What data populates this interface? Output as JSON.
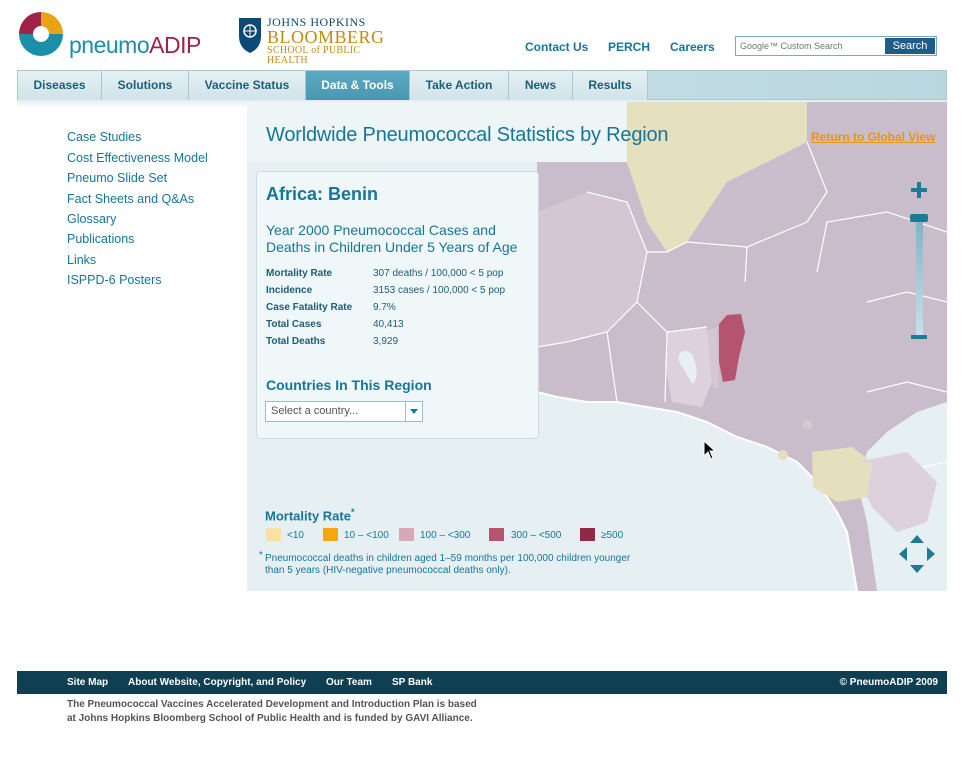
{
  "header": {
    "logo": {
      "prefix": "pneumo",
      "suffix": "ADIP"
    },
    "partner": {
      "line1": "JOHNS HOPKINS",
      "line2": "BLOOMBERG",
      "line3": "SCHOOL of PUBLIC HEALTH"
    },
    "links": [
      "Contact Us",
      "PERCH",
      "Careers"
    ],
    "search": {
      "placeholder": "Google™ Custom Search",
      "button": "Search"
    }
  },
  "nav": {
    "items": [
      "Diseases",
      "Solutions",
      "Vaccine Status",
      "Data & Tools",
      "Take Action",
      "News",
      "Results"
    ],
    "active": "Data & Tools"
  },
  "sidebar": {
    "items": [
      "Case Studies",
      "Cost Effectiveness Model",
      "Pneumo Slide Set",
      "Fact Sheets and Q&As",
      "Glossary",
      "Publications",
      "Links",
      "ISPPD-6 Posters"
    ]
  },
  "main": {
    "title": "Worldwide Pneumococcal Statistics by Region",
    "return_link": "Return to Global View",
    "panel": {
      "country": "Africa: Benin",
      "heading": "Year 2000 Pneumococcal Cases and Deaths in Children Under 5 Years of Age",
      "stats": [
        {
          "label": "Mortality Rate",
          "value": "307 deaths / 100,000 < 5 pop"
        },
        {
          "label": "Incidence",
          "value": "3153 cases / 100,000 < 5 pop"
        },
        {
          "label": "Case Fatality Rate",
          "value": "9.7%"
        },
        {
          "label": "Total Cases",
          "value": "40,413"
        },
        {
          "label": "Total Deaths",
          "value": "3,929"
        }
      ],
      "region_heading": "Countries In This Region",
      "select_value": "Select a country..."
    },
    "legend": {
      "title": "Mortality Rate",
      "title_mark": "*",
      "items": [
        {
          "label": "<10",
          "color": "#fbe0a6"
        },
        {
          "label": "10 – <100",
          "color": "#f5a70f"
        },
        {
          "label": "100 – <300",
          "color": "#d9a8b8"
        },
        {
          "label": "300 – <500",
          "color": "#b4546e"
        },
        {
          "label": "≥500",
          "color": "#8e2a48"
        }
      ],
      "footnote_mark": "*",
      "footnote": "Pneumococcal deaths in children aged 1–59 months per 100,000 children younger  than 5 years (HIV-negative pneumococcal deaths only)."
    }
  },
  "map_colors": {
    "land_default": "#c9bccb",
    "land_light": "#ddd2dc",
    "benin": "#b4546e",
    "sahara": "#e7e0bf",
    "gabon": "#e5dfbd",
    "water": "#e6f0f3",
    "ocean": "#e9f3f5"
  },
  "footer": {
    "links": [
      "Site Map",
      "About Website, Copyright, and Policy",
      "Our Team",
      "SP Bank"
    ],
    "copyright": "© PneumoADIP 2009",
    "text_line1": "The Pneumococcal Vaccines Accelerated Development and Introduction Plan is based",
    "text_line2": "at Johns Hopkins Bloomberg School of Public Health and is funded by GAVI Alliance."
  }
}
